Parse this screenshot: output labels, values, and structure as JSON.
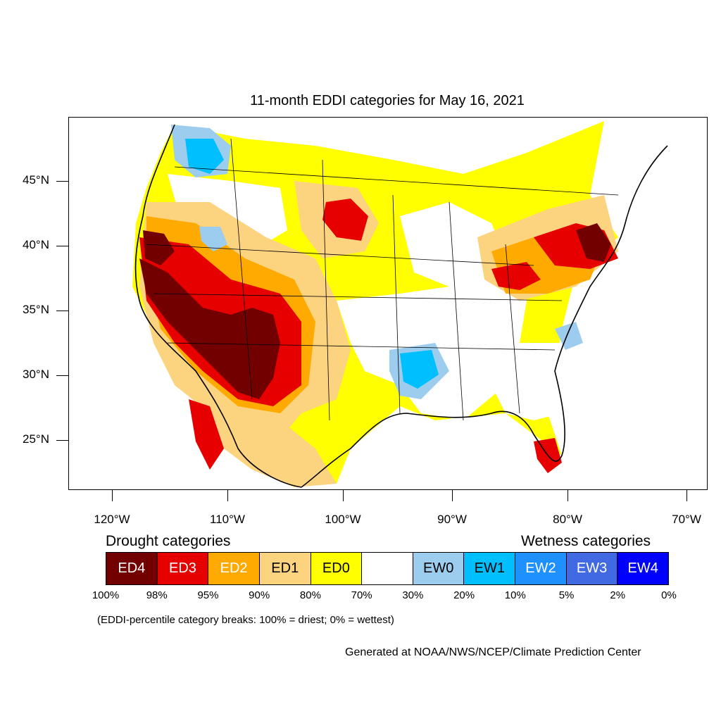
{
  "title": "11-month EDDI categories for May 16, 2021",
  "lat_labels": [
    "45°N",
    "40°N",
    "35°N",
    "30°N",
    "25°N"
  ],
  "lon_labels": [
    "120°W",
    "110°W",
    "100°W",
    "90°W",
    "80°W",
    "70°W"
  ],
  "legend": {
    "drought_heading": "Drought categories",
    "wetness_heading": "Wetness categories",
    "categories": [
      {
        "label": "ED4",
        "color": "#730000",
        "text_color": "#ffffff"
      },
      {
        "label": "ED3",
        "color": "#e60000",
        "text_color": "#ffffff"
      },
      {
        "label": "ED2",
        "color": "#ffaa00",
        "text_color": "#ffffff"
      },
      {
        "label": "ED1",
        "color": "#fcd37f",
        "text_color": "#000000"
      },
      {
        "label": "ED0",
        "color": "#ffff00",
        "text_color": "#000000"
      },
      {
        "label": "",
        "color": "#ffffff",
        "text_color": "#000000"
      },
      {
        "label": "EW0",
        "color": "#9dcdee",
        "text_color": "#000000"
      },
      {
        "label": "EW1",
        "color": "#00bfff",
        "text_color": "#000000"
      },
      {
        "label": "EW2",
        "color": "#1e90ff",
        "text_color": "#ffffff"
      },
      {
        "label": "EW3",
        "color": "#4169e1",
        "text_color": "#ffffff"
      },
      {
        "label": "EW4",
        "color": "#0000ff",
        "text_color": "#ffffff"
      }
    ],
    "breaks": [
      "100%",
      "98%",
      "95%",
      "90%",
      "80%",
      "70%",
      "30%",
      "20%",
      "10%",
      "5%",
      "2%",
      "0%"
    ]
  },
  "note": "(EDDI-percentile category breaks: 100% = driest; 0% = wettest)",
  "credit": "Generated at NOAA/NWS/NCEP/Climate Prediction Center"
}
